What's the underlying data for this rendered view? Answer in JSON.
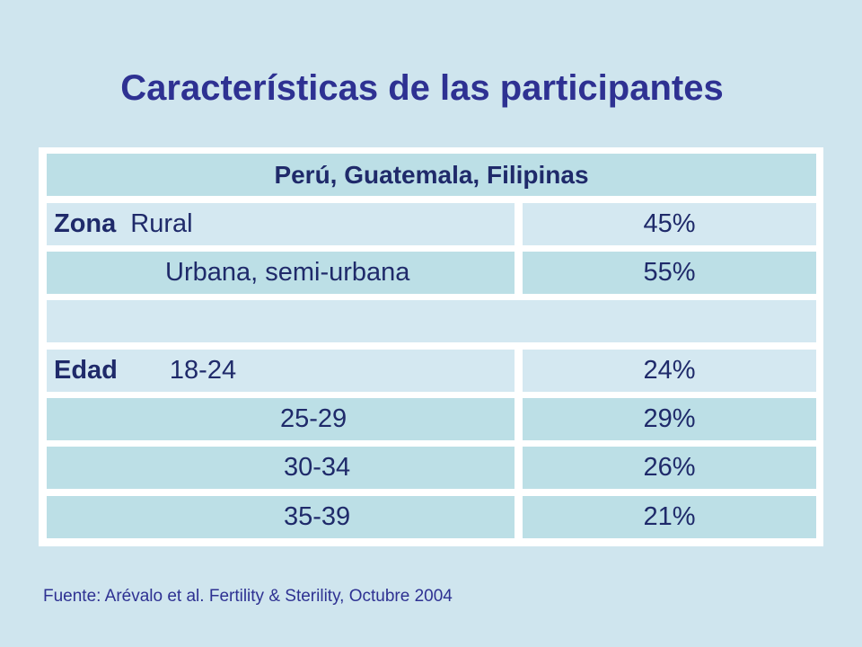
{
  "title": "Características de las participantes",
  "table": {
    "header": "Perú, Guatemala, Filipinas",
    "zona_label": "Zona",
    "edad_label": "Edad",
    "rows": [
      {
        "category": "Rural",
        "value": "45%"
      },
      {
        "category": "Urbana, semi-urbana",
        "value": "55%"
      },
      {
        "category": "18-24",
        "value": "24%"
      },
      {
        "category": "25-29",
        "value": "29%"
      },
      {
        "category": "30-34",
        "value": "26%"
      },
      {
        "category": "35-39",
        "value": "21%"
      }
    ]
  },
  "footer": "Fuente:  Arévalo et al.  Fertility & Sterility, Octubre 2004",
  "colors": {
    "background": "#cfe5ee",
    "title": "#2e3192",
    "cell_dark": "#bcdfe6",
    "cell_light": "#d4e8f1",
    "text": "#1f2a6a"
  }
}
